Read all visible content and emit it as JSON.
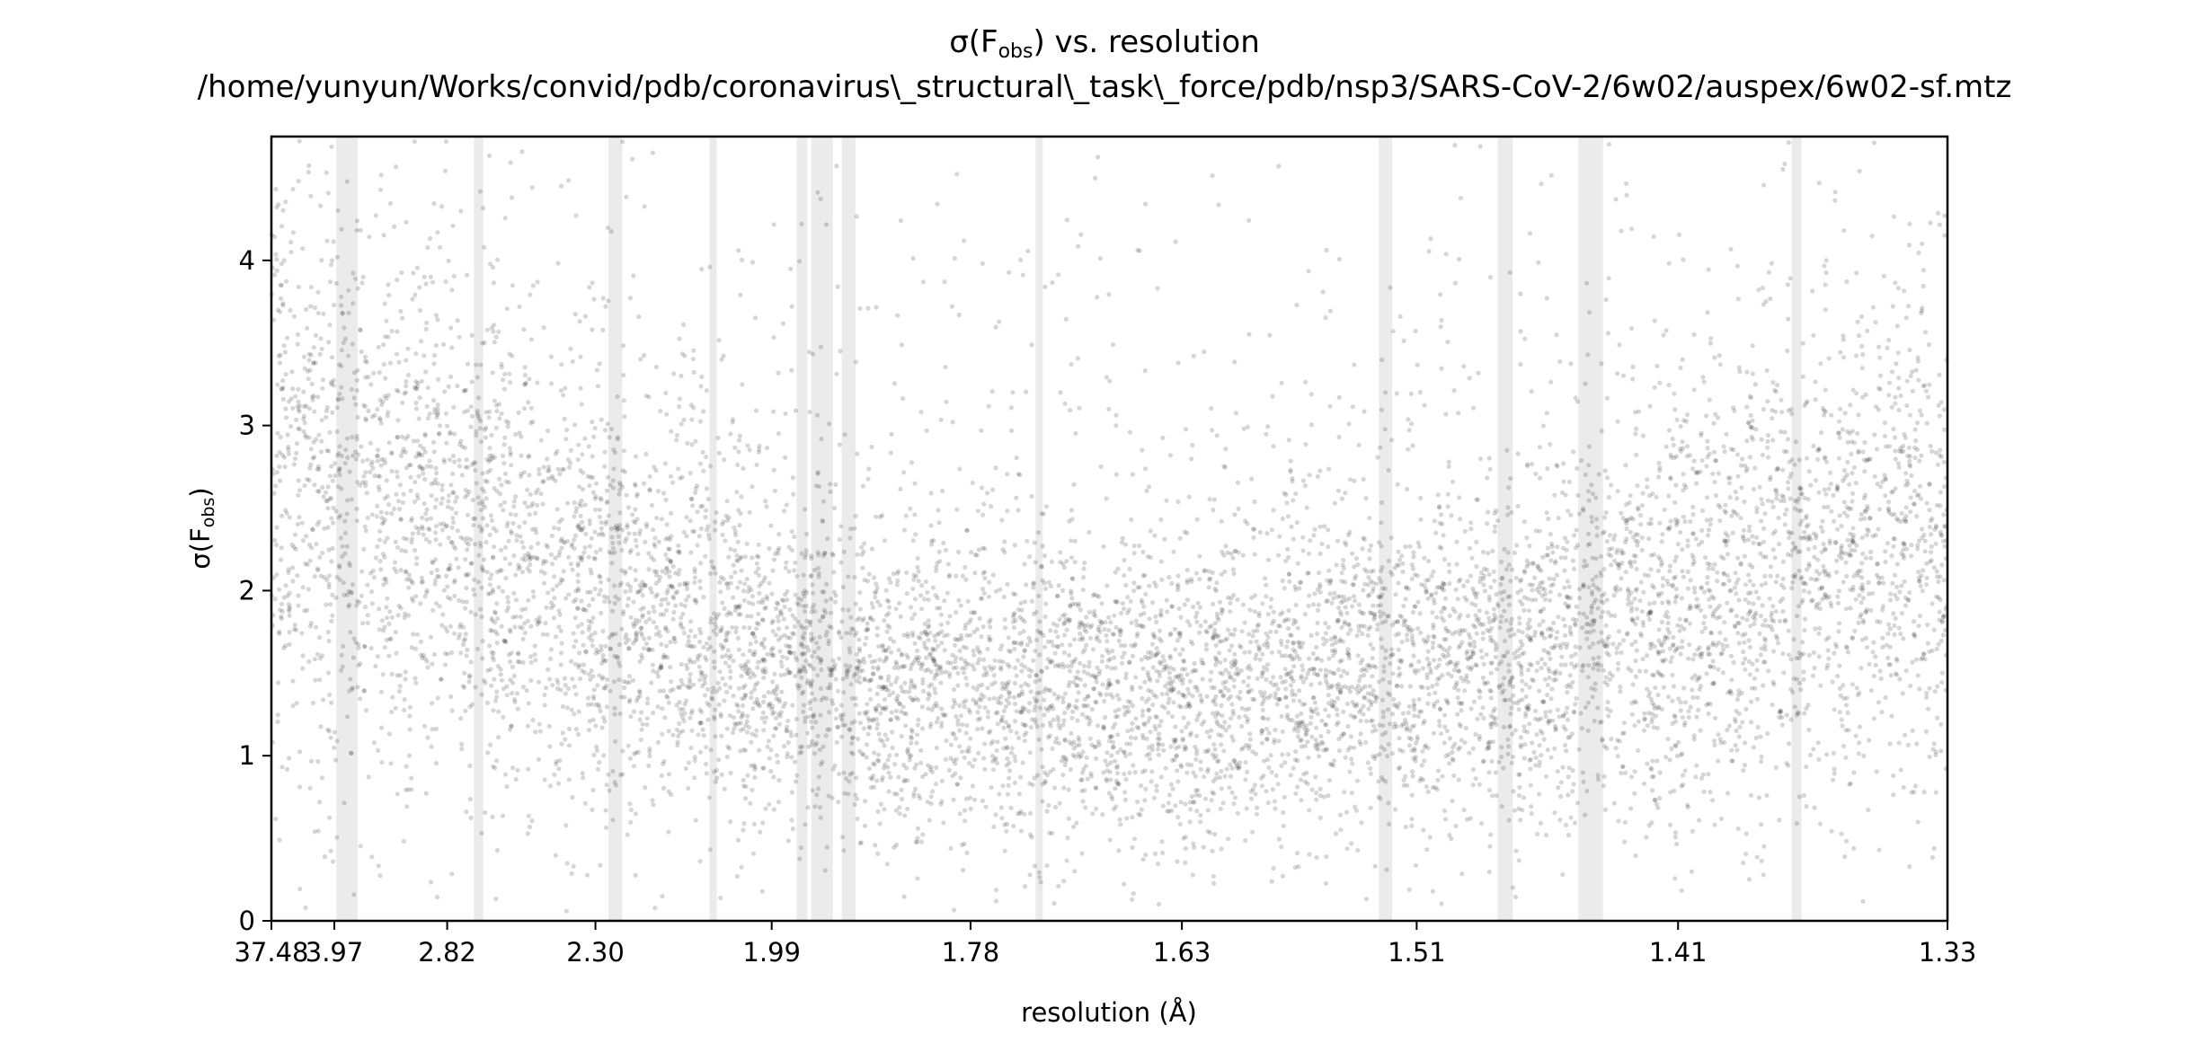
{
  "chart_data": {
    "type": "scatter",
    "title": "σ(F",
    "title_sub": "obs",
    "title_suffix": ") vs. resolution",
    "subtitle": "/home/yunyun/Works/convid/pdb/coronavirus\\_structural\\_task\\_force/pdb/nsp3/SARS-CoV-2/6w02/auspex/6w02-sf.mtz",
    "xlabel": "resolution (Å)",
    "ylabel_main": "σ(F",
    "ylabel_sub": "obs",
    "ylabel_suffix": ")",
    "x_scale": "reciprocal-cubed (shell volume)",
    "xlim": [
      37.48,
      1.33
    ],
    "ylim": [
      0,
      4.75
    ],
    "x_ticks": [
      "37.48",
      "3.97",
      "2.82",
      "2.30",
      "1.99",
      "1.78",
      "1.63",
      "1.51",
      "1.41",
      "1.33"
    ],
    "y_ticks": [
      0,
      1,
      2,
      3,
      4
    ],
    "ice_ring_bands_resolution": [
      [
        3.93,
        3.86
      ],
      [
        3.8,
        3.72
      ],
      [
        3.68,
        3.63
      ],
      [
        2.69,
        2.65
      ],
      [
        2.27,
        2.24
      ],
      [
        2.07,
        2.08
      ],
      [
        1.958,
        1.945
      ],
      [
        1.94,
        1.915
      ],
      [
        1.905,
        1.89
      ],
      [
        1.728,
        1.723
      ],
      [
        1.527,
        1.521
      ],
      [
        1.476,
        1.47
      ],
      [
        1.445,
        1.436
      ],
      [
        1.374,
        1.371
      ]
    ],
    "point_color": "#000000",
    "band_color": "#ebebeb",
    "grid": false,
    "legend": "none"
  }
}
